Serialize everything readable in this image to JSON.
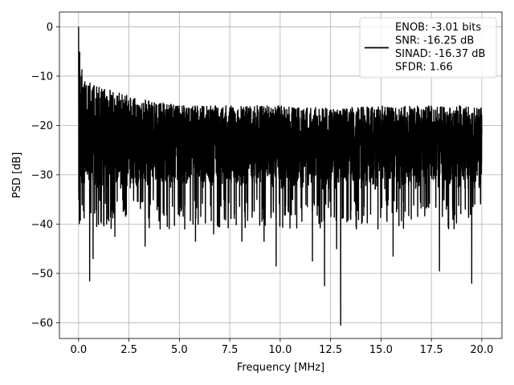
{
  "chart_data": {
    "type": "line",
    "title": "",
    "xlabel": "Frequency [MHz]",
    "ylabel": "PSD [dB]",
    "xlim": [
      -0.95,
      21.0
    ],
    "ylim": [
      -63.2,
      3.0
    ],
    "xticks": [
      0.0,
      2.5,
      5.0,
      7.5,
      10.0,
      12.5,
      15.0,
      17.5,
      20.0
    ],
    "xtick_labels": [
      "0.0",
      "2.5",
      "5.0",
      "7.5",
      "10.0",
      "12.5",
      "15.0",
      "17.5",
      "20.0"
    ],
    "yticks": [
      0,
      -10,
      -20,
      -30,
      -40,
      -50,
      -60
    ],
    "ytick_labels": [
      "0",
      "−10",
      "−20",
      "−30",
      "−40",
      "−50",
      "−60"
    ],
    "grid": true,
    "legend_position": "top-right",
    "line_color": "#000000",
    "series": [
      {
        "name": "ENOB: -3.01 bits\nSNR: -16.25 dB\nSINAD: -16.37 dB\nSFDR: 1.66",
        "legend_lines": [
          "ENOB: -3.01 bits",
          "SNR: -16.25 dB",
          "SINAD: -16.37 dB",
          "SFDR: 1.66"
        ],
        "x_range": [
          0.0,
          20.0
        ],
        "peak": {
          "x": 0.0,
          "y": 0.0
        },
        "upper_envelope": {
          "x": [
            0.0,
            0.1,
            0.3,
            1.0,
            2.5,
            5.0,
            7.5,
            10.0,
            12.5,
            15.0,
            17.5,
            20.0
          ],
          "y": [
            0.0,
            -8.0,
            -12.0,
            -13.0,
            -15.0,
            -17.0,
            -17.0,
            -17.0,
            -17.5,
            -17.0,
            -17.0,
            -17.0
          ]
        },
        "typical_band": [
          -33.0,
          -17.0
        ],
        "notable_minima": [
          {
            "x": 0.55,
            "y": -51.5
          },
          {
            "x": 0.72,
            "y": -47.0
          },
          {
            "x": 0.9,
            "y": -40.5
          },
          {
            "x": 1.8,
            "y": -42.5
          },
          {
            "x": 3.3,
            "y": -44.5
          },
          {
            "x": 4.4,
            "y": -40.5
          },
          {
            "x": 5.8,
            "y": -43.5
          },
          {
            "x": 6.7,
            "y": -42.0
          },
          {
            "x": 8.1,
            "y": -43.5
          },
          {
            "x": 9.2,
            "y": -43.5
          },
          {
            "x": 9.8,
            "y": -48.5
          },
          {
            "x": 11.6,
            "y": -47.5
          },
          {
            "x": 12.2,
            "y": -52.5
          },
          {
            "x": 12.8,
            "y": -45.0
          },
          {
            "x": 13.0,
            "y": -60.5
          },
          {
            "x": 15.6,
            "y": -46.5
          },
          {
            "x": 17.9,
            "y": -49.5
          },
          {
            "x": 19.5,
            "y": -52.0
          }
        ]
      }
    ]
  }
}
